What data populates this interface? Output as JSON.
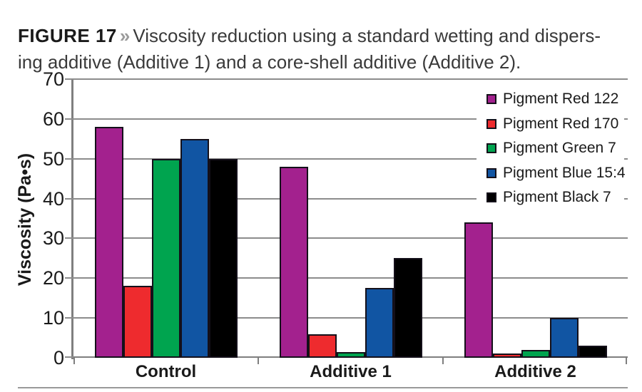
{
  "figure": {
    "label": "FIGURE 17",
    "separator": "»",
    "title_line1": "Viscosity reduction using a standard wetting and dispers-",
    "title_line2": "ing additive (Additive 1) and a core-shell additive (Additive 2)."
  },
  "chart_data": {
    "type": "bar",
    "categories": [
      "Control",
      "Additive 1",
      "Additive 2"
    ],
    "series": [
      {
        "name": "Pigment Red 122",
        "color": "#A3218E",
        "values": [
          58,
          48,
          34
        ]
      },
      {
        "name": "Pigment Red 170",
        "color": "#EE2B2E",
        "values": [
          18,
          6,
          1
        ]
      },
      {
        "name": "Pigment Green 7",
        "color": "#00A44F",
        "values": [
          50,
          1.5,
          2
        ]
      },
      {
        "name": "Pigment Blue 15:4",
        "color": "#1155A3",
        "values": [
          55,
          17.5,
          10
        ]
      },
      {
        "name": "Pigment Black 7",
        "color": "#000000",
        "values": [
          50,
          25,
          3
        ]
      }
    ],
    "title": "",
    "xlabel": "",
    "ylabel": "Viscosity (Pa•s)",
    "ylim": [
      0,
      70
    ],
    "yticks": [
      0,
      10,
      20,
      30,
      40,
      50,
      60,
      70
    ],
    "grid": true,
    "legend_position": "top-right"
  },
  "style": {
    "grid_color": "#8C8C8C",
    "axis_color": "#7F7F7F",
    "bar_outline": "#14101A",
    "caption_label_color": "#1A1A1A",
    "caption_text_color": "#3A3A3A",
    "caption_separator_color": "#9B9B9B",
    "background": "#FFFFFF"
  }
}
